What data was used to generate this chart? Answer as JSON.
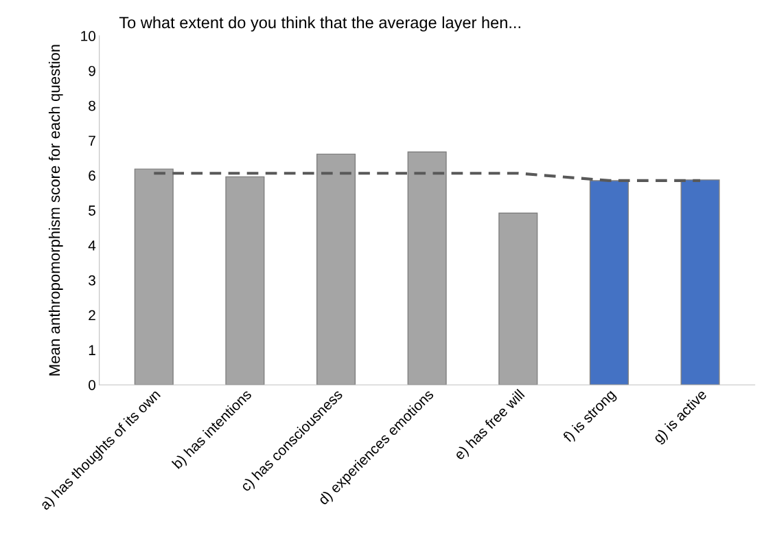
{
  "chart_data": {
    "type": "bar",
    "title": "To what extent do you think that the average layer hen...",
    "ylabel": "Mean anthropomorphism score for each question",
    "categories": [
      "a) has thoughts of its own",
      "b) has intentions",
      "c) has consciousness",
      "d) experiences emotions",
      "e) has free will",
      "f) is strong",
      "g) is active"
    ],
    "series": [
      {
        "colors": [
          "#a5a5a5",
          "#a5a5a5",
          "#a5a5a5",
          "#a5a5a5",
          "#a5a5a5",
          "#4472c4",
          "#4472c4"
        ],
        "values": [
          6.18,
          5.96,
          6.61,
          6.67,
          4.92,
          5.85,
          5.87
        ]
      },
      {
        "type": "line",
        "color": "#595959",
        "line_style": "dashed",
        "values": [
          6.06,
          6.06,
          6.06,
          6.06,
          6.06,
          5.85,
          5.85
        ]
      }
    ],
    "ylim": [
      0,
      10
    ],
    "yticks": [
      0,
      1,
      2,
      3,
      4,
      5,
      6,
      7,
      8,
      9,
      10
    ],
    "grid": false,
    "legend": false
  }
}
